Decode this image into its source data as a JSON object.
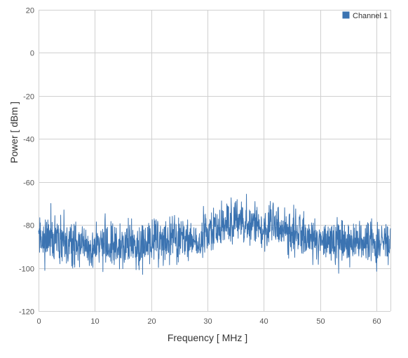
{
  "chart_data": {
    "type": "line",
    "title": "",
    "xlabel": "Frequency [ MHz ]",
    "ylabel": "Power [ dBm ]",
    "xlim": [
      0,
      62.5
    ],
    "ylim": [
      -120,
      20
    ],
    "xticks": [
      0,
      10,
      20,
      30,
      40,
      50,
      60
    ],
    "yticks": [
      20,
      0,
      -20,
      -40,
      -60,
      -80,
      -100,
      -120
    ],
    "grid": true,
    "legend_position": "top-right",
    "series": [
      {
        "name": "Channel 1",
        "color": "#3b73b1",
        "noise_amplitude_db": 5,
        "envelope": [
          [
            0,
            -87
          ],
          [
            3,
            -88
          ],
          [
            6,
            -89
          ],
          [
            10,
            -89
          ],
          [
            14,
            -89
          ],
          [
            18,
            -89
          ],
          [
            22,
            -88
          ],
          [
            26,
            -87
          ],
          [
            29,
            -85
          ],
          [
            31,
            -83
          ],
          [
            33,
            -80
          ],
          [
            35,
            -79
          ],
          [
            38,
            -80
          ],
          [
            40,
            -81
          ],
          [
            42,
            -80
          ],
          [
            44,
            -82
          ],
          [
            46,
            -84
          ],
          [
            48,
            -86
          ],
          [
            50,
            -87
          ],
          [
            54,
            -88
          ],
          [
            58,
            -88
          ],
          [
            62.5,
            -88
          ]
        ],
        "peaks": [
          [
            0.3,
            -79
          ],
          [
            1.0,
            -85
          ],
          [
            2.2,
            -70
          ],
          [
            3.0,
            -82
          ],
          [
            4.5,
            -73
          ],
          [
            11.4,
            -82
          ],
          [
            18.5,
            -103
          ],
          [
            29.0,
            -79
          ],
          [
            33.5,
            -76
          ],
          [
            35.5,
            -75
          ],
          [
            41.0,
            -75
          ],
          [
            42.5,
            -72
          ],
          [
            48.5,
            -79
          ],
          [
            52.0,
            -81
          ],
          [
            55.0,
            -80
          ],
          [
            60.5,
            -82
          ],
          [
            62.0,
            -81
          ],
          [
            62.3,
            -93
          ]
        ]
      }
    ]
  }
}
